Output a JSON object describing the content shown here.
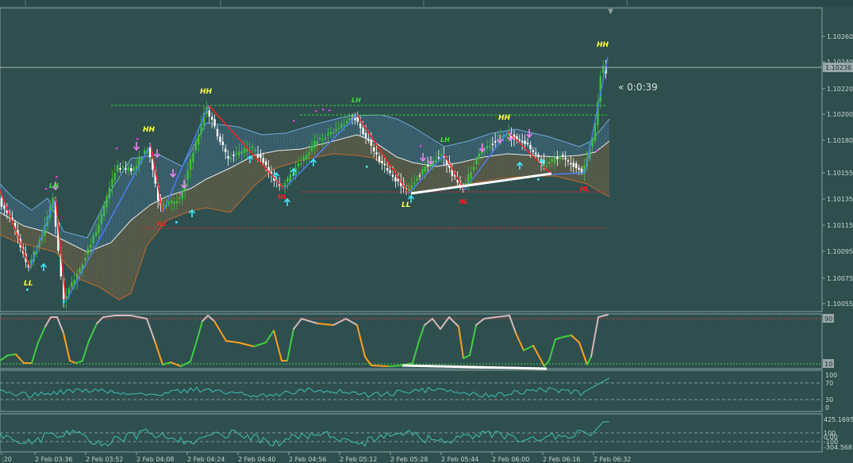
{
  "colors": {
    "background": "#2f4f4f",
    "grid": "#496666",
    "axis_text": "#c8d4d4",
    "panel_sep": "#7f9a9a",
    "price_line": "#9aa8aa",
    "bull": "#3fbf3f",
    "bear": "#ffffff",
    "upper_band": "#6fa8dc",
    "lower_band": "#c06a2a",
    "middle_line": "#e8e8e8",
    "zigzag_up": "#4a7ff0",
    "zigzag_down": "#ff2020",
    "level_green": "#2fcf2f",
    "level_red": "#cf2f2f",
    "stoch_up": "#40d040",
    "stoch_down": "#ff9f1f",
    "stoch_top": "#d8b8b8",
    "osc": "#3fbfb0",
    "trendline": "#ffffff",
    "label_hh": "#ffff40",
    "label_lh": "#40e040",
    "label_hl": "#ff2020",
    "label_ll": "#ffff40",
    "arrow_cyan": "#40e8ff",
    "arrow_pink": "#ee82ee"
  },
  "header": {
    "top_marker": "▼"
  },
  "countdown": "« 0:0:39",
  "price_axis": {
    "labels": [
      "1.10260",
      "1.10240",
      "1.10220",
      "1.10200",
      "1.10180",
      "1.10155",
      "1.10135",
      "1.10115",
      "1.10095",
      "1.10075",
      "1.10055"
    ],
    "current_price": "1.10236"
  },
  "stoch_axis": {
    "top": "90",
    "bottom": "10"
  },
  "osc1_axis": {
    "labels": [
      "100",
      "70",
      "30",
      "0"
    ]
  },
  "osc2_axis": {
    "labels": [
      "425.1695",
      "100",
      "0.00",
      "-100",
      "-304.568"
    ]
  },
  "time_axis": {
    "labels": [
      ":20",
      "2 Feb 03:36",
      "2 Feb 03:52",
      "2 Feb 04:08",
      "2 Feb 04:24",
      "2 Feb 04:40",
      "2 Feb 04:56",
      "2 Feb 05:12",
      "2 Feb 05:28",
      "2 Feb 05:44",
      "2 Feb 06:00",
      "2 Feb 06:16",
      "2 Feb 06:32"
    ]
  },
  "swing_labels": [
    {
      "text": "LL",
      "kind": "ll"
    },
    {
      "text": "LH",
      "kind": "lh"
    },
    {
      "text": "HH",
      "kind": "hh"
    },
    {
      "text": "HL",
      "kind": "hl"
    },
    {
      "text": "HH",
      "kind": "hh"
    },
    {
      "text": "HL",
      "kind": "hl"
    },
    {
      "text": "LH",
      "kind": "lh"
    },
    {
      "text": "LL",
      "kind": "ll"
    },
    {
      "text": "LH",
      "kind": "lh"
    },
    {
      "text": "HL",
      "kind": "hl"
    },
    {
      "text": "HH",
      "kind": "hh"
    },
    {
      "text": "HL",
      "kind": "hl"
    },
    {
      "text": "HH",
      "kind": "hh"
    }
  ]
}
